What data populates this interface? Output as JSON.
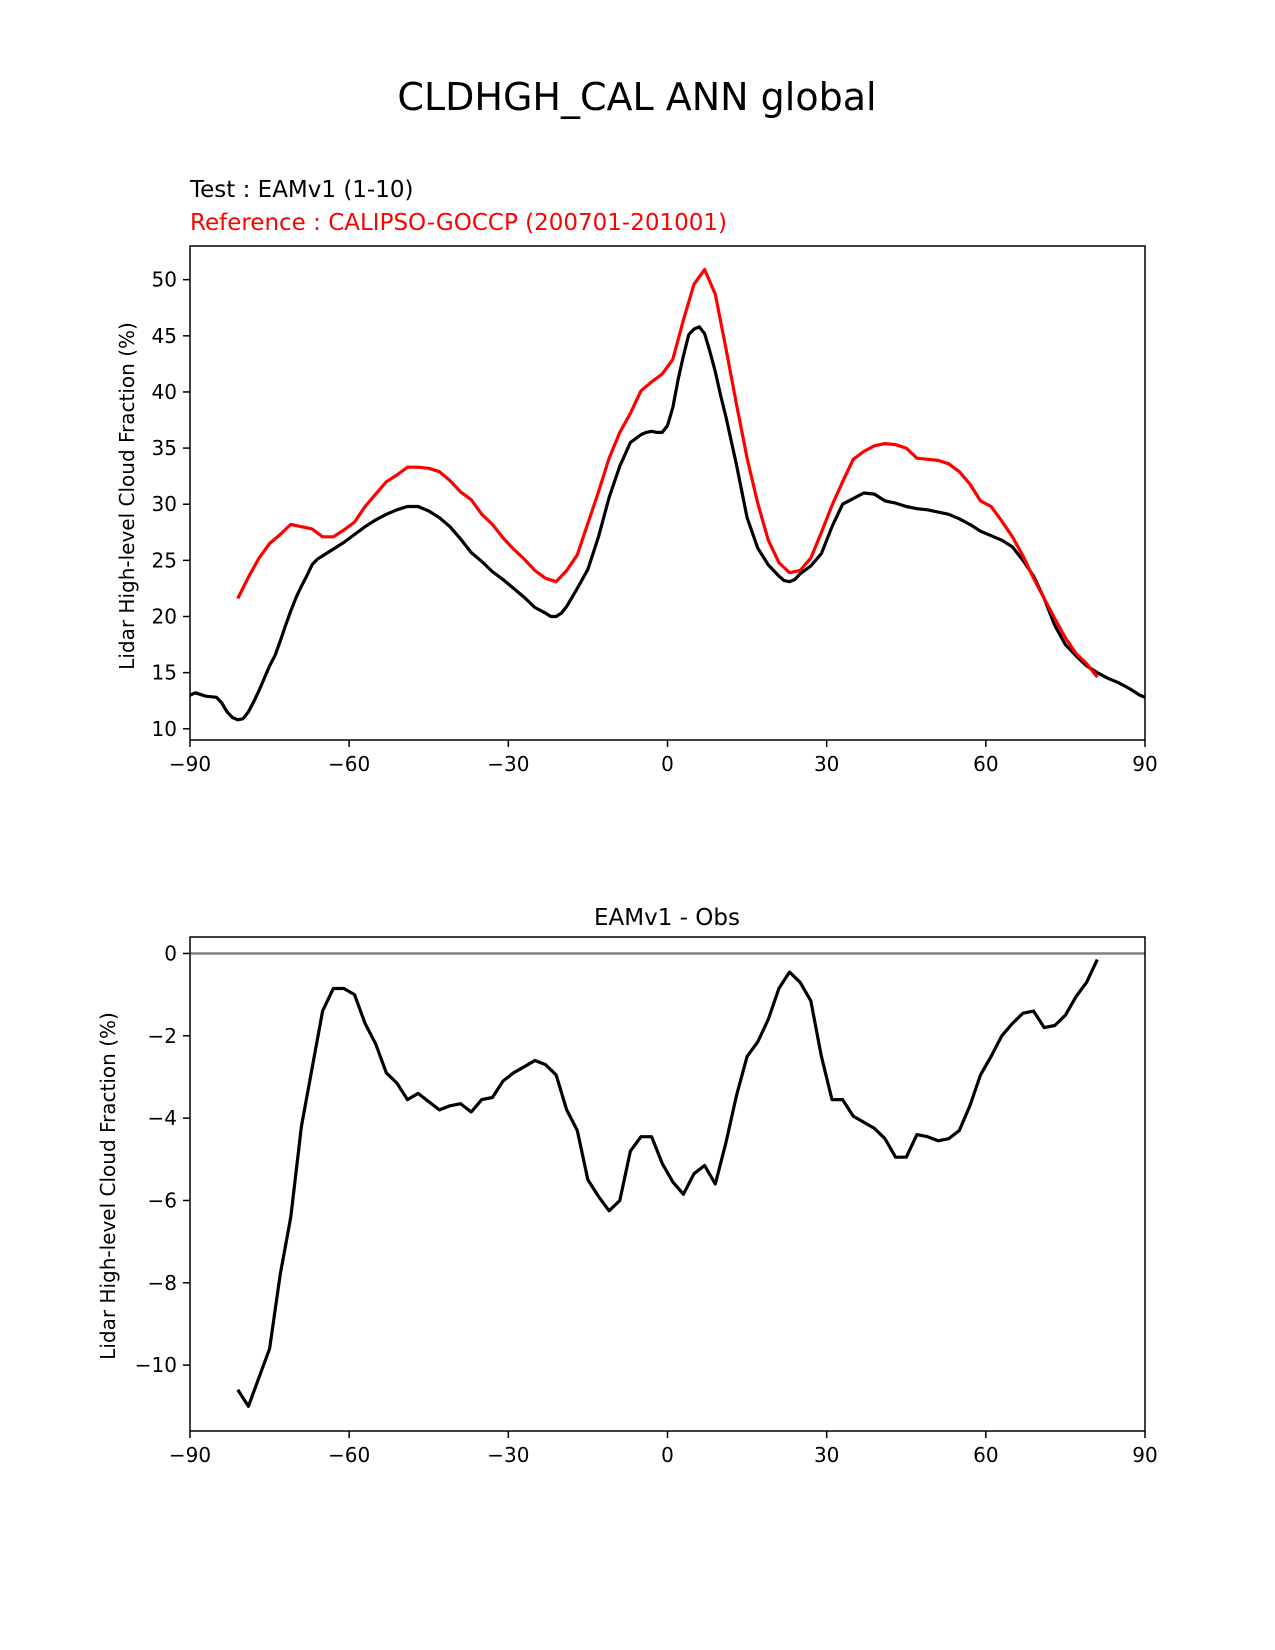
{
  "figure_title": "CLDHGH_CAL ANN global",
  "colors": {
    "test": "#000000",
    "reference": "#ff0000",
    "zero_line": "#808080"
  },
  "chart_data": [
    {
      "type": "line",
      "test_label": "Test : EAMv1 (1-10)",
      "reference_label": "Reference : CALIPSO-GOCCP (200701-201001)",
      "ylabel": "Lidar High-level Cloud Fraction (%)",
      "xlim": [
        -90,
        90
      ],
      "ylim": [
        9,
        53
      ],
      "xticks": [
        -90,
        -60,
        -30,
        0,
        30,
        60,
        90
      ],
      "xtick_labels": [
        "−90",
        "−60",
        "−30",
        "0",
        "30",
        "60",
        "90"
      ],
      "yticks": [
        10,
        15,
        20,
        25,
        30,
        35,
        40,
        45,
        50
      ],
      "ytick_labels": [
        "10",
        "15",
        "20",
        "25",
        "30",
        "35",
        "40",
        "45",
        "50"
      ],
      "series": [
        {
          "name": "Test : EAMv1 (1-10)",
          "color": "#000000",
          "x": [
            -90,
            -89,
            -87,
            -85,
            -84,
            -83,
            -82,
            -81,
            -80,
            -79,
            -78,
            -77,
            -76,
            -75,
            -74,
            -73,
            -72,
            -71,
            -70,
            -69,
            -68,
            -67,
            -66,
            -65,
            -63,
            -61,
            -59,
            -57,
            -55,
            -53,
            -51,
            -49,
            -47,
            -45,
            -43,
            -41,
            -39,
            -37,
            -35,
            -33,
            -31,
            -29,
            -27,
            -25,
            -23,
            -22,
            -21,
            -20,
            -19,
            -18,
            -17,
            -15,
            -13,
            -11,
            -9,
            -7,
            -5,
            -4,
            -3,
            -2,
            -1,
            0,
            1,
            2,
            3,
            4,
            5,
            6,
            7,
            8,
            9,
            10,
            11,
            13,
            15,
            17,
            19,
            21,
            22,
            23,
            24,
            25,
            27,
            29,
            31,
            33,
            35,
            37,
            39,
            41,
            43,
            45,
            47,
            49,
            51,
            53,
            55,
            57,
            59,
            61,
            63,
            65,
            67,
            69,
            71,
            73,
            75,
            77,
            79,
            81,
            83,
            85,
            87,
            89,
            90
          ],
          "y": [
            13,
            13.2,
            12.9,
            12.8,
            12.3,
            11.5,
            11,
            10.8,
            10.9,
            11.5,
            12.4,
            13.4,
            14.5,
            15.6,
            16.5,
            17.8,
            19.2,
            20.5,
            21.7,
            22.7,
            23.6,
            24.6,
            25.1,
            25.4,
            26,
            26.6,
            27.3,
            28,
            28.6,
            29.1,
            29.5,
            29.8,
            29.8,
            29.4,
            28.8,
            28,
            26.9,
            25.7,
            24.9,
            24,
            23.3,
            22.5,
            21.7,
            20.8,
            20.3,
            20,
            20,
            20.3,
            20.9,
            21.7,
            22.5,
            24.2,
            27.1,
            30.6,
            33.4,
            35.5,
            36.2,
            36.4,
            36.5,
            36.4,
            36.4,
            37,
            38.6,
            41.1,
            43.2,
            45.1,
            45.6,
            45.8,
            45.2,
            43.6,
            41.8,
            39.7,
            37.8,
            33.5,
            28.8,
            26.1,
            24.6,
            23.6,
            23.2,
            23.1,
            23.3,
            23.8,
            24.5,
            25.6,
            28,
            30,
            30.5,
            31,
            30.9,
            30.3,
            30.1,
            29.8,
            29.6,
            29.5,
            29.3,
            29.1,
            28.7,
            28.2,
            27.6,
            27.2,
            26.8,
            26.2,
            25,
            23.6,
            21.6,
            19.2,
            17.5,
            16.5,
            15.6,
            15,
            14.5,
            14.1,
            13.6,
            13,
            12.8
          ]
        },
        {
          "name": "Reference : CALIPSO-GOCCP (200701-201001)",
          "color": "#ff0000",
          "x": [
            -81,
            -79,
            -77,
            -75,
            -73,
            -71,
            -69,
            -67,
            -65,
            -63,
            -61,
            -59,
            -57,
            -55,
            -53,
            -51,
            -49,
            -47,
            -45,
            -43,
            -41,
            -39,
            -37,
            -35,
            -33,
            -31,
            -29,
            -27,
            -25,
            -23,
            -21,
            -19,
            -17,
            -15,
            -13,
            -11,
            -9,
            -7,
            -5,
            -3,
            -1,
            1,
            3,
            5,
            7,
            9,
            11,
            13,
            15,
            17,
            19,
            21,
            23,
            25,
            27,
            29,
            31,
            33,
            35,
            37,
            39,
            41,
            43,
            45,
            47,
            49,
            51,
            53,
            55,
            57,
            59,
            61,
            63,
            65,
            67,
            69,
            71,
            73,
            75,
            77,
            79,
            81
          ],
          "y": [
            21.6,
            23.5,
            25.2,
            26.5,
            27.3,
            28.2,
            28,
            27.8,
            27.1,
            27.1,
            27.7,
            28.4,
            29.8,
            30.9,
            32,
            32.6,
            33.3,
            33.3,
            33.2,
            32.9,
            32.1,
            31.1,
            30.4,
            29.1,
            28.2,
            27,
            26,
            25.1,
            24.1,
            23.4,
            23.1,
            24.1,
            25.5,
            28.3,
            31.1,
            34.1,
            36.4,
            38.1,
            40.1,
            40.9,
            41.6,
            42.9,
            46.4,
            49.6,
            50.9,
            48.7,
            43.9,
            38.9,
            34.1,
            30.1,
            26.8,
            24.8,
            23.9,
            24.1,
            25.2,
            27.5,
            29.9,
            32,
            34,
            34.7,
            35.2,
            35.4,
            35.3,
            35,
            34.1,
            34,
            33.9,
            33.6,
            32.9,
            31.8,
            30.3,
            29.8,
            28.5,
            27.1,
            25.4,
            23.4,
            21.6,
            19.8,
            18.1,
            16.7,
            15.8,
            14.6
          ]
        }
      ]
    },
    {
      "type": "line",
      "title": "EAMv1 - Obs",
      "ylabel": "Lidar High-level Cloud Fraction (%)",
      "xlim": [
        -90,
        90
      ],
      "ylim": [
        -11.6,
        0.4
      ],
      "xticks": [
        -90,
        -60,
        -30,
        0,
        30,
        60,
        90
      ],
      "xtick_labels": [
        "−90",
        "−60",
        "−30",
        "0",
        "30",
        "60",
        "90"
      ],
      "yticks": [
        0,
        -2,
        -4,
        -6,
        -8,
        -10
      ],
      "ytick_labels": [
        "0",
        "−2",
        "−4",
        "−6",
        "−8",
        "−10"
      ],
      "zero_line": 0,
      "series": [
        {
          "name": "EAMv1 - Obs",
          "color": "#000000",
          "x": [
            -81,
            -79,
            -77,
            -75,
            -73,
            -71,
            -69,
            -67,
            -65,
            -63,
            -61,
            -59,
            -57,
            -55,
            -53,
            -51,
            -49,
            -47,
            -45,
            -43,
            -41,
            -39,
            -37,
            -35,
            -33,
            -31,
            -29,
            -27,
            -25,
            -23,
            -21,
            -19,
            -17,
            -15,
            -13,
            -11,
            -9,
            -7,
            -5,
            -3,
            -1,
            1,
            3,
            5,
            7,
            9,
            11,
            13,
            15,
            17,
            19,
            21,
            23,
            25,
            27,
            29,
            31,
            33,
            35,
            37,
            39,
            41,
            43,
            45,
            47,
            49,
            51,
            53,
            55,
            57,
            59,
            61,
            63,
            65,
            67,
            69,
            71,
            73,
            75,
            77,
            79,
            81
          ],
          "y": [
            -10.6,
            -11,
            -10.3,
            -9.6,
            -7.8,
            -6.4,
            -4.2,
            -2.8,
            -1.4,
            -0.85,
            -0.85,
            -1,
            -1.7,
            -2.2,
            -2.9,
            -3.15,
            -3.55,
            -3.4,
            -3.6,
            -3.8,
            -3.7,
            -3.65,
            -3.85,
            -3.55,
            -3.5,
            -3.1,
            -2.9,
            -2.75,
            -2.6,
            -2.7,
            -2.95,
            -3.8,
            -4.3,
            -5.5,
            -5.9,
            -6.25,
            -6,
            -4.8,
            -4.45,
            -4.45,
            -5.1,
            -5.55,
            -5.85,
            -5.35,
            -5.15,
            -5.6,
            -4.6,
            -3.45,
            -2.5,
            -2.15,
            -1.6,
            -0.85,
            -0.45,
            -0.7,
            -1.15,
            -2.5,
            -3.55,
            -3.55,
            -3.95,
            -4.1,
            -4.25,
            -4.5,
            -4.95,
            -4.95,
            -4.4,
            -4.45,
            -4.55,
            -4.5,
            -4.3,
            -3.7,
            -2.95,
            -2.5,
            -2,
            -1.7,
            -1.45,
            -1.4,
            -1.8,
            -1.75,
            -1.5,
            -1.05,
            -0.7,
            -0.15
          ]
        }
      ]
    }
  ]
}
